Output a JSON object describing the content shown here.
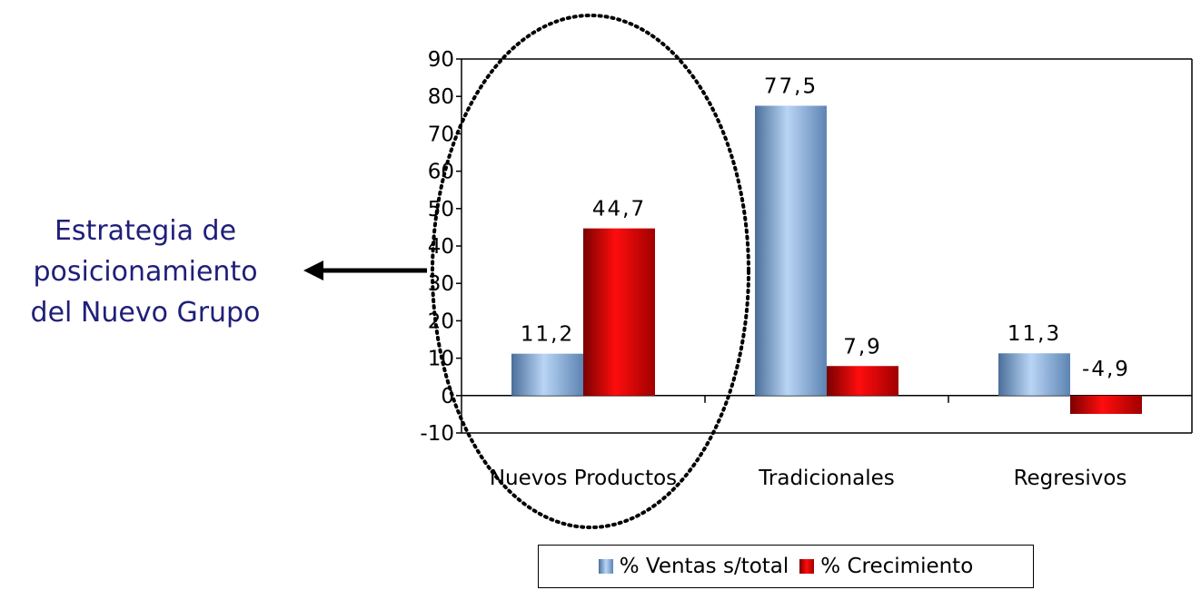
{
  "annotation": {
    "lines": [
      "Estrategia de",
      "posicionamiento",
      "del Nuevo Grupo"
    ]
  },
  "legend": {
    "items": [
      {
        "label": "% Ventas s/total",
        "color": "#8db4e2"
      },
      {
        "label": "% Crecimiento",
        "color": "#e00000"
      }
    ]
  },
  "chart_data": {
    "type": "bar",
    "categories": [
      "Nuevos Productos",
      "Tradicionales",
      "Regresivos"
    ],
    "series": [
      {
        "name": "% Ventas s/total",
        "values": [
          11.2,
          77.5,
          11.3
        ],
        "labels": [
          "11,2",
          "77,5",
          "11,3"
        ],
        "color": "#8db4e2"
      },
      {
        "name": "% Crecimiento",
        "values": [
          44.7,
          7.9,
          -4.9
        ],
        "labels": [
          "44,7",
          "7,9",
          "-4,9"
        ],
        "color": "#e00000"
      }
    ],
    "yticks": [
      "90",
      "80",
      "70",
      "60",
      "50",
      "40",
      "30",
      "20",
      "10",
      "0",
      "-10"
    ],
    "ylim": [
      -10,
      90
    ],
    "grid": false,
    "legend": "bottom",
    "highlight": {
      "category": "Nuevos Productos",
      "shape": "dotted-ellipse"
    }
  }
}
